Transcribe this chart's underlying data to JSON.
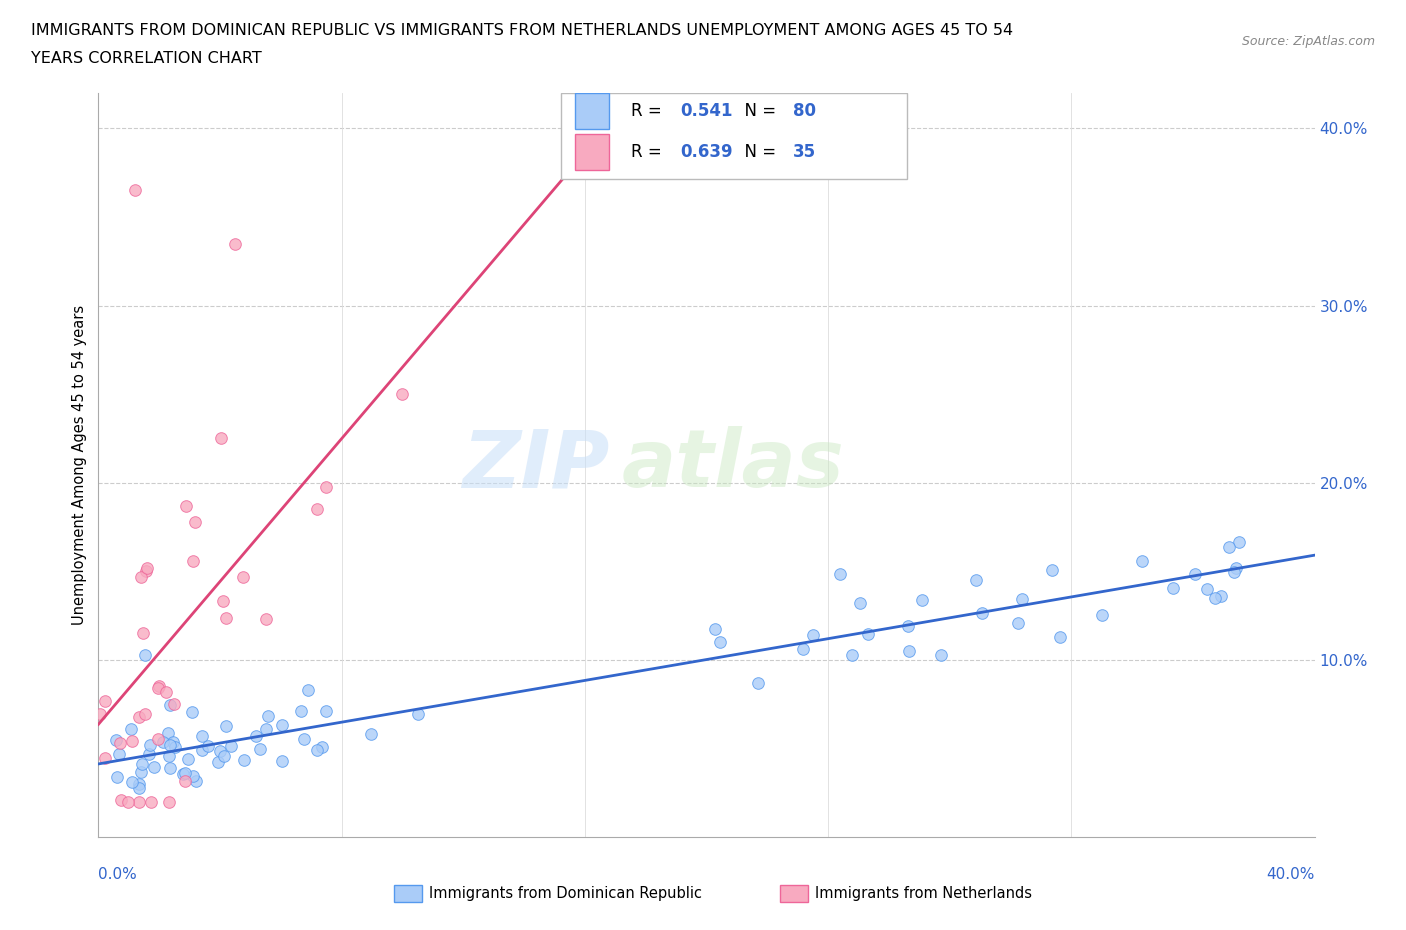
{
  "title_line1": "IMMIGRANTS FROM DOMINICAN REPUBLIC VS IMMIGRANTS FROM NETHERLANDS UNEMPLOYMENT AMONG AGES 45 TO 54",
  "title_line2": "YEARS CORRELATION CHART",
  "source_text": "Source: ZipAtlas.com",
  "ylabel_label": "Unemployment Among Ages 45 to 54 years",
  "xlim": [
    0.0,
    0.4
  ],
  "ylim": [
    0.0,
    0.42
  ],
  "ytick_vals": [
    0.0,
    0.1,
    0.2,
    0.3,
    0.4
  ],
  "ytick_labels": [
    "",
    "10.0%",
    "20.0%",
    "30.0%",
    "40.0%"
  ],
  "r_dominican": 0.541,
  "n_dominican": 80,
  "r_netherlands": 0.639,
  "n_netherlands": 35,
  "color_dominican_fill": "#aaccf8",
  "color_netherlands_fill": "#f8aac0",
  "color_dominican_edge": "#5599ee",
  "color_netherlands_edge": "#ee6699",
  "color_dominican_line": "#3366cc",
  "color_netherlands_line": "#dd4477",
  "color_text_blue": "#3366cc",
  "legend_label_dominican": "Immigrants from Dominican Republic",
  "legend_label_netherlands": "Immigrants from Netherlands",
  "watermark_zip": "ZIP",
  "watermark_atlas": "atlas",
  "seed_dom": 42,
  "seed_neth": 77
}
